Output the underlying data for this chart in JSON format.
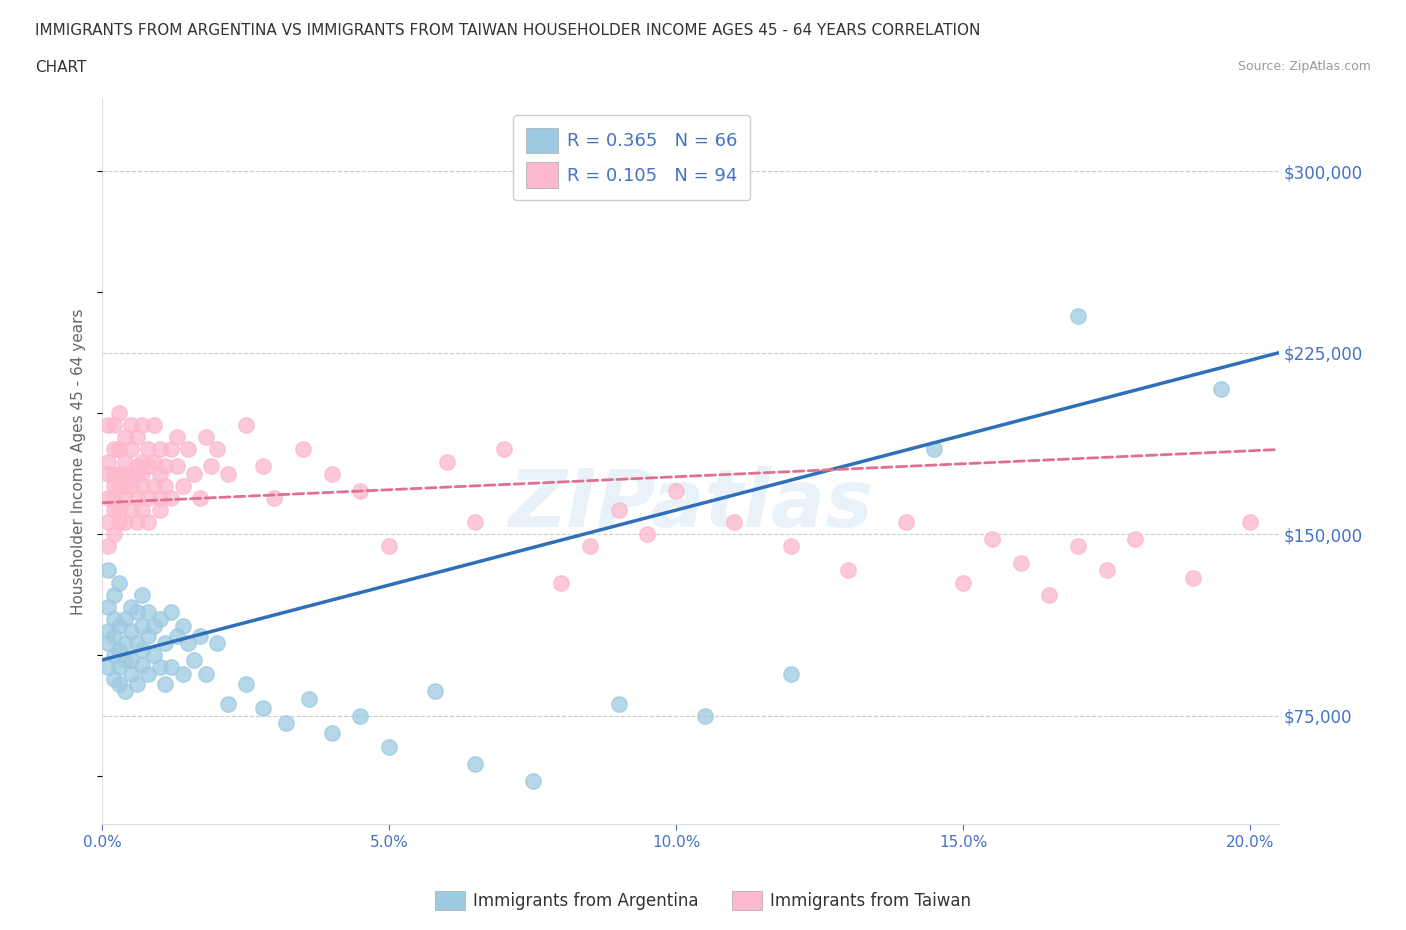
{
  "title_line1": "IMMIGRANTS FROM ARGENTINA VS IMMIGRANTS FROM TAIWAN HOUSEHOLDER INCOME AGES 45 - 64 YEARS CORRELATION",
  "title_line2": "CHART",
  "source_text": "Source: ZipAtlas.com",
  "argentina_R": 0.365,
  "argentina_N": 66,
  "taiwan_R": 0.105,
  "taiwan_N": 94,
  "argentina_color": "#9ecae1",
  "taiwan_color": "#fcb8cc",
  "argentina_line_color": "#3070b8",
  "taiwan_line_color": "#e07090",
  "ylabel": "Householder Income Ages 45 - 64 years",
  "xlim": [
    0.0,
    0.205
  ],
  "ylim": [
    30000,
    330000
  ],
  "yticks": [
    75000,
    150000,
    225000,
    300000
  ],
  "ytick_labels": [
    "$75,000",
    "$150,000",
    "$225,000",
    "$300,000"
  ],
  "xticks": [
    0.0,
    0.05,
    0.1,
    0.15,
    0.2
  ],
  "xtick_labels": [
    "0.0%",
    "5.0%",
    "10.0%",
    "15.0%",
    "20.0%"
  ],
  "watermark": "ZIPatlas",
  "background_color": "#ffffff",
  "grid_color": "#cccccc",
  "axis_color": "#4472c4",
  "argentina_scatter_x": [
    0.001,
    0.001,
    0.001,
    0.001,
    0.001,
    0.002,
    0.002,
    0.002,
    0.002,
    0.002,
    0.003,
    0.003,
    0.003,
    0.003,
    0.003,
    0.004,
    0.004,
    0.004,
    0.004,
    0.005,
    0.005,
    0.005,
    0.005,
    0.006,
    0.006,
    0.006,
    0.007,
    0.007,
    0.007,
    0.007,
    0.008,
    0.008,
    0.008,
    0.009,
    0.009,
    0.01,
    0.01,
    0.011,
    0.011,
    0.012,
    0.012,
    0.013,
    0.014,
    0.014,
    0.015,
    0.016,
    0.017,
    0.018,
    0.02,
    0.022,
    0.025,
    0.028,
    0.032,
    0.036,
    0.04,
    0.045,
    0.05,
    0.058,
    0.065,
    0.075,
    0.09,
    0.105,
    0.12,
    0.145,
    0.17,
    0.195
  ],
  "argentina_scatter_y": [
    120000,
    110000,
    135000,
    95000,
    105000,
    100000,
    115000,
    90000,
    125000,
    108000,
    95000,
    112000,
    130000,
    88000,
    102000,
    98000,
    115000,
    85000,
    105000,
    110000,
    92000,
    120000,
    98000,
    105000,
    118000,
    88000,
    112000,
    96000,
    125000,
    102000,
    108000,
    92000,
    118000,
    100000,
    112000,
    95000,
    115000,
    105000,
    88000,
    118000,
    95000,
    108000,
    112000,
    92000,
    105000,
    98000,
    108000,
    92000,
    105000,
    80000,
    88000,
    78000,
    72000,
    82000,
    68000,
    75000,
    62000,
    85000,
    55000,
    48000,
    80000,
    75000,
    92000,
    185000,
    240000,
    210000
  ],
  "taiwan_scatter_x": [
    0.001,
    0.001,
    0.001,
    0.001,
    0.001,
    0.001,
    0.002,
    0.002,
    0.002,
    0.002,
    0.002,
    0.002,
    0.002,
    0.003,
    0.003,
    0.003,
    0.003,
    0.003,
    0.003,
    0.003,
    0.004,
    0.004,
    0.004,
    0.004,
    0.004,
    0.004,
    0.005,
    0.005,
    0.005,
    0.005,
    0.005,
    0.006,
    0.006,
    0.006,
    0.006,
    0.006,
    0.007,
    0.007,
    0.007,
    0.007,
    0.007,
    0.008,
    0.008,
    0.008,
    0.008,
    0.009,
    0.009,
    0.009,
    0.01,
    0.01,
    0.01,
    0.01,
    0.011,
    0.011,
    0.012,
    0.012,
    0.013,
    0.013,
    0.014,
    0.015,
    0.016,
    0.017,
    0.018,
    0.019,
    0.02,
    0.022,
    0.025,
    0.028,
    0.03,
    0.035,
    0.04,
    0.045,
    0.05,
    0.06,
    0.065,
    0.07,
    0.08,
    0.085,
    0.09,
    0.095,
    0.1,
    0.11,
    0.12,
    0.13,
    0.14,
    0.15,
    0.155,
    0.16,
    0.165,
    0.17,
    0.175,
    0.18,
    0.19,
    0.2
  ],
  "taiwan_scatter_y": [
    165000,
    180000,
    155000,
    175000,
    195000,
    145000,
    170000,
    160000,
    185000,
    175000,
    150000,
    195000,
    165000,
    175000,
    185000,
    155000,
    170000,
    200000,
    160000,
    185000,
    175000,
    165000,
    190000,
    155000,
    180000,
    170000,
    175000,
    185000,
    160000,
    195000,
    170000,
    178000,
    165000,
    190000,
    175000,
    155000,
    180000,
    170000,
    195000,
    160000,
    175000,
    185000,
    165000,
    178000,
    155000,
    180000,
    170000,
    195000,
    175000,
    165000,
    185000,
    160000,
    178000,
    170000,
    185000,
    165000,
    178000,
    190000,
    170000,
    185000,
    175000,
    165000,
    190000,
    178000,
    185000,
    175000,
    195000,
    178000,
    165000,
    185000,
    175000,
    168000,
    145000,
    180000,
    155000,
    185000,
    130000,
    145000,
    160000,
    150000,
    168000,
    155000,
    145000,
    135000,
    155000,
    130000,
    148000,
    138000,
    125000,
    145000,
    135000,
    148000,
    132000,
    155000
  ]
}
